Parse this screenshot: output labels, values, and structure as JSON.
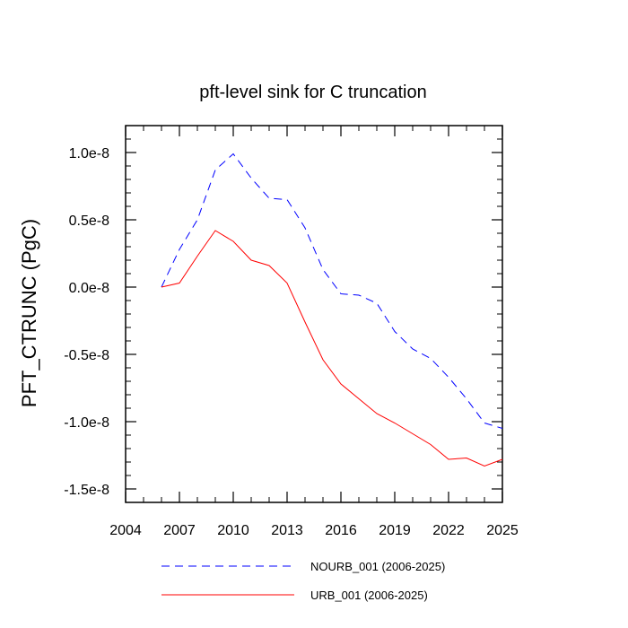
{
  "chart_data": {
    "type": "line",
    "title": "pft-level sink for C truncation",
    "xlabel": "",
    "ylabel": "PFT_CTRUNC  (PgC)",
    "xlim": [
      2004,
      2025
    ],
    "ylim": [
      -1.6e-08,
      1.2e-08
    ],
    "x_ticks": [
      2004,
      2007,
      2010,
      2013,
      2016,
      2019,
      2022,
      2025
    ],
    "x_tick_labels": [
      "2004",
      "2007",
      "2010",
      "2013",
      "2016",
      "2019",
      "2022",
      "2025"
    ],
    "y_ticks": [
      1e-08,
      5e-09,
      0.0,
      -5e-09,
      -1e-08,
      -1.5e-08
    ],
    "y_tick_labels": [
      "1.0e-8",
      "0.5e-8",
      "0.0e-8",
      "-0.5e-8",
      "-1.0e-8",
      "-1.5e-8"
    ],
    "grid": false,
    "legend_position": "bottom",
    "x": [
      2006,
      2007,
      2008,
      2009,
      2010,
      2011,
      2012,
      2013,
      2014,
      2015,
      2016,
      2017,
      2018,
      2019,
      2020,
      2021,
      2022,
      2023,
      2024,
      2025
    ],
    "series": [
      {
        "name": "NOURB_001 (2006-2025)",
        "color": "#0000ff",
        "style": "dashed",
        "values": [
          0.0,
          2.8e-09,
          5e-09,
          8.7e-09,
          9.9e-09,
          8.1e-09,
          6.6e-09,
          6.5e-09,
          4.4e-09,
          1.3e-09,
          -5e-10,
          -6e-10,
          -1.2e-09,
          -3.3e-09,
          -4.6e-09,
          -5.3e-09,
          -6.7e-09,
          -8.3e-09,
          -1.01e-08,
          -1.05e-08
        ]
      },
      {
        "name": "URB_001 (2006-2025)",
        "color": "#ff0000",
        "style": "solid",
        "values": [
          0.0,
          3e-10,
          2.3e-09,
          4.2e-09,
          3.4e-09,
          2e-09,
          1.6e-09,
          3e-10,
          -2.6e-09,
          -5.4e-09,
          -7.2e-09,
          -8.3e-09,
          -9.4e-09,
          -1.01e-08,
          -1.09e-08,
          -1.17e-08,
          -1.28e-08,
          -1.27e-08,
          -1.33e-08,
          -1.28e-08
        ]
      }
    ]
  }
}
